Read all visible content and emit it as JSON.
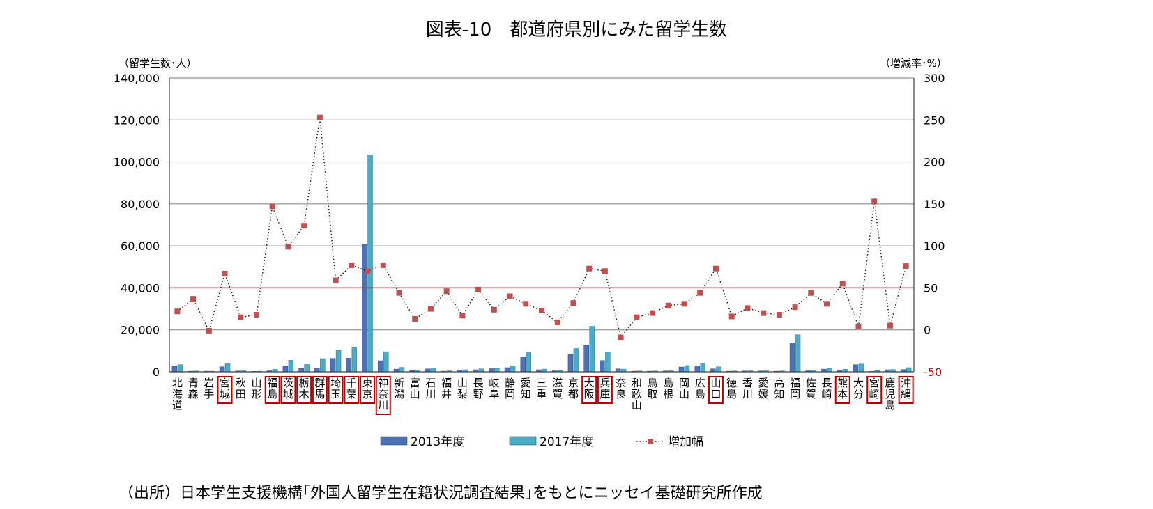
{
  "chart_data": {
    "type": "bar",
    "title": "図表-10　都道府県別にみた留学生数",
    "ylabel": "（留学生数･人）",
    "y2label": "（増減率･%）",
    "ylim": [
      0,
      140000
    ],
    "y2lim": [
      -50,
      300
    ],
    "yticks": [
      "0",
      "20,000",
      "40,000",
      "60,000",
      "80,000",
      "100,000",
      "120,000",
      "140,000"
    ],
    "y2ticks": [
      "-50",
      "0",
      "50",
      "100",
      "150",
      "200",
      "250",
      "300"
    ],
    "reference_line": 50,
    "categories": [
      "北海道",
      "青森",
      "岩手",
      "宮城",
      "秋田",
      "山形",
      "福島",
      "茨城",
      "栃木",
      "群馬",
      "埼玉",
      "千葉",
      "東京",
      "神奈川",
      "新潟",
      "富山",
      "石川",
      "福井",
      "山梨",
      "長野",
      "岐阜",
      "静岡",
      "愛知",
      "三重",
      "滋賀",
      "京都",
      "大阪",
      "兵庫",
      "奈良",
      "和歌山",
      "鳥取",
      "島根",
      "岡山",
      "広島",
      "山口",
      "徳島",
      "香川",
      "愛媛",
      "高知",
      "福岡",
      "佐賀",
      "長崎",
      "熊本",
      "大分",
      "宮崎",
      "鹿児島",
      "沖縄"
    ],
    "highlighted": [
      "宮城",
      "福島",
      "茨城",
      "栃木",
      "群馬",
      "埼玉",
      "千葉",
      "東京",
      "神奈川",
      "大阪",
      "兵庫",
      "山口",
      "熊本",
      "宮崎",
      "沖縄"
    ],
    "series": [
      {
        "name": "2013年度",
        "axis": "left",
        "kind": "bar",
        "values": [
          2800,
          300,
          300,
          2400,
          400,
          200,
          500,
          2700,
          1600,
          1900,
          6400,
          6500,
          60700,
          5300,
          1300,
          600,
          1400,
          300,
          800,
          1000,
          1500,
          2000,
          7200,
          1000,
          500,
          8300,
          12600,
          5400,
          1400,
          300,
          300,
          400,
          2300,
          2800,
          1400,
          300,
          400,
          400,
          300,
          13800,
          500,
          1300,
          800,
          3400,
          200,
          1000,
          1100
        ]
      },
      {
        "name": "2017年度",
        "axis": "left",
        "kind": "bar",
        "values": [
          3400,
          400,
          300,
          4000,
          500,
          300,
          1200,
          5500,
          3500,
          6300,
          10300,
          11500,
          103300,
          9600,
          2100,
          700,
          1800,
          500,
          1000,
          1400,
          1900,
          2800,
          9400,
          1300,
          600,
          11100,
          21700,
          9400,
          1300,
          400,
          400,
          500,
          3000,
          4100,
          2400,
          400,
          500,
          500,
          400,
          17700,
          700,
          1700,
          1200,
          3700,
          600,
          1100,
          2000
        ]
      },
      {
        "name": "増加幅",
        "axis": "right",
        "kind": "line",
        "values": [
          22,
          37,
          -1,
          67,
          15,
          18,
          147,
          99,
          124,
          253,
          59,
          77,
          70,
          77,
          44,
          13,
          25,
          46,
          17,
          48,
          24,
          40,
          31,
          23,
          9,
          32,
          73,
          70,
          -9,
          15,
          20,
          29,
          31,
          44,
          73,
          16,
          26,
          20,
          18,
          27,
          44,
          31,
          55,
          4,
          153,
          5,
          76
        ]
      }
    ]
  },
  "colors": {
    "bar_2013": "#4a72b8",
    "bar_2017": "#4bacc6",
    "marker": "#c0504d",
    "reference_line": "#9b2c2c",
    "highlight_box": "#c00000",
    "grid": "#7f7f7f"
  },
  "source_note": "（出所）日本学生支援機構｢外国人留学生在籍状況調査結果｣をもとにニッセイ基礎研究所作成"
}
